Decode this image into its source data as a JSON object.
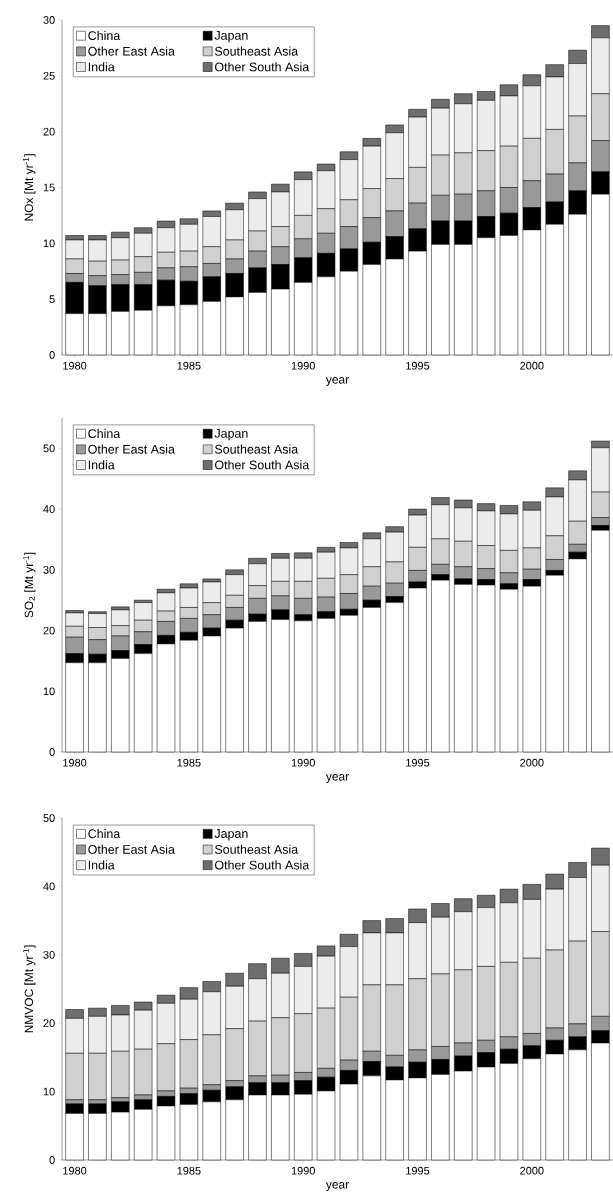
{
  "chart_data": [
    {
      "type": "bar",
      "stacked": true,
      "xlabel": "year",
      "ylabel": "NOx [Mt yr$^{-1}$]",
      "legend": "top left",
      "x": [
        1980,
        1981,
        1982,
        1983,
        1984,
        1985,
        1986,
        1987,
        1988,
        1989,
        1990,
        1991,
        1992,
        1993,
        1994,
        1995,
        1996,
        1997,
        1998,
        1999,
        2000,
        2001,
        2002,
        2003
      ],
      "xlim": [
        1979.45,
        2003.55
      ],
      "xticks": [
        1980,
        1985,
        1990,
        1995,
        2000
      ],
      "ylim": [
        0,
        30
      ],
      "yticks": [
        0,
        5,
        10,
        15,
        20,
        25,
        30
      ],
      "series": [
        {
          "name": "China",
          "color": "#ffffff",
          "values": [
            3.7,
            3.7,
            3.9,
            4.0,
            4.4,
            4.5,
            4.8,
            5.2,
            5.6,
            5.9,
            6.5,
            7.0,
            7.5,
            8.1,
            8.6,
            9.3,
            9.9,
            9.9,
            10.5,
            10.7,
            11.2,
            11.7,
            12.6,
            14.4
          ]
        },
        {
          "name": "Japan",
          "color": "#000000",
          "values": [
            2.8,
            2.5,
            2.4,
            2.3,
            2.3,
            2.1,
            2.2,
            2.1,
            2.2,
            2.2,
            2.2,
            2.1,
            2.0,
            2.0,
            2.0,
            2.0,
            2.1,
            2.1,
            1.9,
            2.0,
            2.0,
            2.0,
            2.1,
            2.0
          ]
        },
        {
          "name": "Other East Asia",
          "color": "#999999",
          "values": [
            0.8,
            0.9,
            0.9,
            1.1,
            1.1,
            1.3,
            1.2,
            1.3,
            1.5,
            1.6,
            1.7,
            1.8,
            2.0,
            2.2,
            2.3,
            2.3,
            2.3,
            2.4,
            2.3,
            2.3,
            2.4,
            2.5,
            2.5,
            2.8
          ]
        },
        {
          "name": "Southeast Asia",
          "color": "#d0d0d0",
          "values": [
            1.3,
            1.3,
            1.3,
            1.4,
            1.4,
            1.4,
            1.5,
            1.7,
            1.8,
            1.8,
            2.1,
            2.2,
            2.4,
            2.6,
            2.9,
            3.2,
            3.6,
            3.7,
            3.6,
            3.7,
            3.8,
            4.0,
            4.2,
            4.2
          ]
        },
        {
          "name": "India",
          "color": "#ececec",
          "values": [
            1.7,
            1.9,
            2.0,
            2.1,
            2.2,
            2.4,
            2.7,
            2.7,
            2.9,
            3.1,
            3.2,
            3.4,
            3.6,
            3.8,
            4.1,
            4.5,
            4.2,
            4.4,
            4.5,
            4.5,
            4.7,
            4.7,
            4.7,
            5.0
          ]
        },
        {
          "name": "Other South Asia",
          "color": "#6e6e6e",
          "values": [
            0.4,
            0.4,
            0.5,
            0.5,
            0.6,
            0.5,
            0.5,
            0.6,
            0.6,
            0.7,
            0.7,
            0.6,
            0.7,
            0.7,
            0.7,
            0.7,
            0.8,
            0.9,
            0.8,
            1.0,
            1.0,
            1.1,
            1.2,
            1.1
          ]
        }
      ]
    },
    {
      "type": "bar",
      "stacked": true,
      "xlabel": "year",
      "ylabel": "SO$_{2}$ [Mt yr$^{-1}$]",
      "legend": "top left",
      "x": [
        1980,
        1981,
        1982,
        1983,
        1984,
        1985,
        1986,
        1987,
        1988,
        1989,
        1990,
        1991,
        1992,
        1993,
        1994,
        1995,
        1996,
        1997,
        1998,
        1999,
        2000,
        2001,
        2002,
        2003
      ],
      "xlim": [
        1979.45,
        2003.55
      ],
      "xticks": [
        1980,
        1985,
        1990,
        1995,
        2000
      ],
      "ylim": [
        0,
        55
      ],
      "yticks": [
        0,
        10,
        20,
        30,
        40,
        50
      ],
      "series": [
        {
          "name": "China",
          "color": "#ffffff",
          "values": [
            14.7,
            14.7,
            15.4,
            16.2,
            17.8,
            18.4,
            19.1,
            20.4,
            21.5,
            21.8,
            21.6,
            22.0,
            22.5,
            23.8,
            24.6,
            27.0,
            28.3,
            27.6,
            27.5,
            26.8,
            27.3,
            29.1,
            31.8,
            36.5
          ]
        },
        {
          "name": "Japan",
          "color": "#000000",
          "values": [
            1.5,
            1.4,
            1.3,
            1.5,
            1.4,
            1.3,
            1.3,
            1.3,
            1.2,
            1.6,
            1.0,
            1.1,
            1.0,
            1.2,
            1.0,
            1.0,
            0.9,
            0.9,
            0.9,
            0.9,
            1.1,
            0.8,
            1.1,
            0.8
          ]
        },
        {
          "name": "Other East Asia",
          "color": "#999999",
          "values": [
            2.7,
            2.4,
            2.4,
            2.1,
            2.3,
            2.3,
            2.2,
            2.1,
            2.6,
            2.3,
            2.7,
            2.4,
            2.6,
            2.3,
            2.2,
            1.9,
            1.7,
            2.0,
            1.8,
            1.8,
            1.7,
            1.8,
            1.3,
            1.3
          ]
        },
        {
          "name": "Southeast Asia",
          "color": "#d0d0d0",
          "values": [
            1.8,
            2.0,
            1.7,
            1.9,
            1.7,
            1.8,
            2.0,
            2.0,
            2.1,
            2.4,
            2.8,
            3.1,
            3.1,
            3.2,
            3.5,
            3.8,
            4.2,
            4.2,
            3.8,
            3.7,
            3.5,
            3.9,
            3.8,
            4.2
          ]
        },
        {
          "name": "India",
          "color": "#ececec",
          "values": [
            2.2,
            2.3,
            2.6,
            2.9,
            3.0,
            3.2,
            3.4,
            3.4,
            3.6,
            3.8,
            3.8,
            4.3,
            4.4,
            4.6,
            4.9,
            5.3,
            5.6,
            5.5,
            5.7,
            6.0,
            6.2,
            6.4,
            6.8,
            7.3
          ]
        },
        {
          "name": "Other South Asia",
          "color": "#6e6e6e",
          "values": [
            0.4,
            0.3,
            0.5,
            0.4,
            0.6,
            0.7,
            0.5,
            0.8,
            0.9,
            0.8,
            0.9,
            0.8,
            0.9,
            1.0,
            0.9,
            1.0,
            1.2,
            1.3,
            1.2,
            1.4,
            1.4,
            1.5,
            1.5,
            1.1
          ]
        }
      ]
    },
    {
      "type": "bar",
      "stacked": true,
      "xlabel": "year",
      "ylabel": "NMVOC [Mt yr$^{-1}$]",
      "legend": "top left",
      "x": [
        1980,
        1981,
        1982,
        1983,
        1984,
        1985,
        1986,
        1987,
        1988,
        1989,
        1990,
        1991,
        1992,
        1993,
        1994,
        1995,
        1996,
        1997,
        1998,
        1999,
        2000,
        2001,
        2002,
        2003
      ],
      "xlim": [
        1979.45,
        2003.55
      ],
      "xticks": [
        1980,
        1985,
        1990,
        1995,
        2000
      ],
      "ylim": [
        0,
        50
      ],
      "yticks": [
        0,
        10,
        20,
        30,
        40,
        50
      ],
      "series": [
        {
          "name": "China",
          "color": "#ffffff",
          "values": [
            6.8,
            6.8,
            7.0,
            7.4,
            7.9,
            8.1,
            8.5,
            8.8,
            9.5,
            9.5,
            9.6,
            10.1,
            11.1,
            12.3,
            11.7,
            12.0,
            12.5,
            13.0,
            13.6,
            14.1,
            14.8,
            15.5,
            16.1,
            17.1
          ]
        },
        {
          "name": "Japan",
          "color": "#000000",
          "values": [
            1.4,
            1.4,
            1.5,
            1.4,
            1.4,
            1.6,
            1.7,
            1.9,
            1.8,
            1.8,
            2.0,
            2.0,
            2.0,
            2.1,
            1.9,
            2.3,
            2.2,
            2.2,
            2.1,
            2.1,
            1.9,
            2.0,
            1.9,
            1.8
          ]
        },
        {
          "name": "Other East Asia",
          "color": "#999999",
          "values": [
            0.6,
            0.6,
            0.6,
            0.7,
            0.8,
            0.8,
            0.8,
            0.9,
            1.0,
            1.1,
            1.2,
            1.3,
            1.5,
            1.5,
            1.7,
            1.8,
            1.9,
            1.9,
            1.8,
            1.8,
            1.8,
            1.8,
            1.9,
            2.1
          ]
        },
        {
          "name": "Southeast Asia",
          "color": "#d0d0d0",
          "values": [
            6.8,
            6.8,
            6.8,
            6.7,
            6.9,
            7.1,
            7.3,
            7.6,
            8.0,
            8.4,
            8.6,
            8.8,
            9.2,
            9.7,
            10.3,
            10.4,
            10.6,
            10.7,
            10.8,
            10.9,
            11.0,
            11.4,
            12.1,
            12.4
          ]
        },
        {
          "name": "India",
          "color": "#ececec",
          "values": [
            5.1,
            5.4,
            5.3,
            5.7,
            5.9,
            5.9,
            6.3,
            6.2,
            6.2,
            6.5,
            6.9,
            7.6,
            7.4,
            7.6,
            7.6,
            8.2,
            8.3,
            8.5,
            8.6,
            8.7,
            8.6,
            8.9,
            9.3,
            9.7
          ]
        },
        {
          "name": "Other South Asia",
          "color": "#6e6e6e",
          "values": [
            1.3,
            1.2,
            1.4,
            1.2,
            1.2,
            1.7,
            1.5,
            1.9,
            2.2,
            2.2,
            1.9,
            1.5,
            1.8,
            1.8,
            2.1,
            2.0,
            2.0,
            1.9,
            1.8,
            2.0,
            2.2,
            2.2,
            2.2,
            2.5
          ]
        }
      ]
    }
  ]
}
